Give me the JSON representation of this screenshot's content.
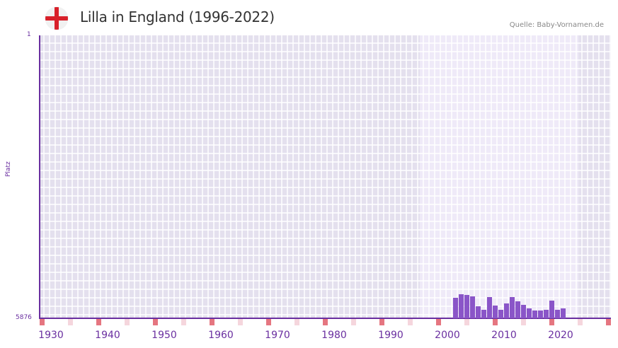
{
  "header": {
    "title": "Lilla in England (1996-2022)",
    "source": "Quelle: Baby-Vornamen.de",
    "flag_icon": "england-flag-icon"
  },
  "colors": {
    "bar": "#8a55c8",
    "axis": "#6a2fa0",
    "bg_outside": "#e4e0ee",
    "bg_inside": "#efeaf8",
    "marker_decade": "#e57680",
    "marker_half": "#f5d6dd",
    "flag_red": "#d8202a"
  },
  "axes": {
    "y_top_label": "1",
    "y_bottom_label": "5876",
    "y_title": "Platz",
    "x_ticks": [
      "1930",
      "1940",
      "1950",
      "1960",
      "1970",
      "1980",
      "1990",
      "2000",
      "2010",
      "2020"
    ]
  },
  "chart_data": {
    "type": "bar",
    "title": "Lilla in England (1996-2022)",
    "xlabel": "",
    "ylabel": "Platz",
    "ylim": [
      5876,
      1
    ],
    "y_inverted": true,
    "xlim": [
      1928,
      2028
    ],
    "data_range_highlight": [
      1995,
      2022
    ],
    "grid": true,
    "categories": [
      2001,
      2002,
      2003,
      2004,
      2005,
      2006,
      2007,
      2008,
      2009,
      2010,
      2011,
      2012,
      2013,
      2014,
      2015,
      2016,
      2017,
      2018,
      2019,
      2020
    ],
    "values": [
      5450,
      5376,
      5391,
      5420,
      5626,
      5700,
      5435,
      5611,
      5700,
      5567,
      5435,
      5523,
      5597,
      5670,
      5714,
      5714,
      5700,
      5509,
      5700,
      5670
    ],
    "x_tick_labels": [
      "1930",
      "1940",
      "1950",
      "1960",
      "1970",
      "1980",
      "1990",
      "2000",
      "2010",
      "2020"
    ],
    "source": "Quelle: Baby-Vornamen.de"
  }
}
